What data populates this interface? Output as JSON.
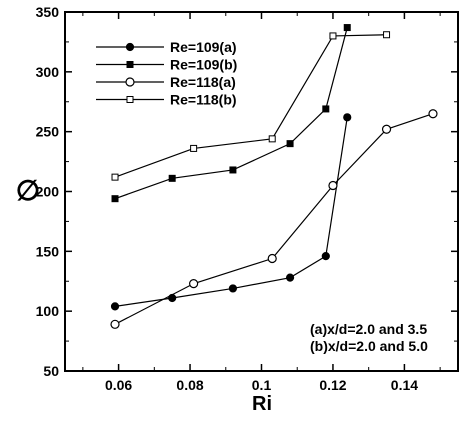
{
  "chart_data": {
    "type": "line",
    "xlabel": "Ri",
    "ylabel": "∅",
    "xlim": [
      0.045,
      0.155
    ],
    "ylim": [
      50,
      350
    ],
    "x_ticks": [
      "0.06",
      "0.08",
      "0.1",
      "0.12",
      "0.14"
    ],
    "y_ticks": [
      "50",
      "100",
      "150",
      "200",
      "250",
      "300",
      "350"
    ],
    "grid": false,
    "legend_position": "top-left",
    "series": [
      {
        "name": "Re=109(a)",
        "marker": "filled-circle",
        "x": [
          0.059,
          0.075,
          0.092,
          0.108,
          0.118,
          0.124
        ],
        "y": [
          104,
          111,
          119,
          128,
          146,
          262
        ]
      },
      {
        "name": "Re=109(b)",
        "marker": "filled-square",
        "x": [
          0.059,
          0.075,
          0.092,
          0.108,
          0.118,
          0.124
        ],
        "y": [
          194,
          211,
          218,
          240,
          269,
          337
        ]
      },
      {
        "name": "Re=118(a)",
        "marker": "open-circle",
        "x": [
          0.059,
          0.081,
          0.103,
          0.12,
          0.135,
          0.148
        ],
        "y": [
          89,
          123,
          144,
          205,
          252,
          265
        ]
      },
      {
        "name": "Re=118(b)",
        "marker": "open-square",
        "x": [
          0.059,
          0.081,
          0.103,
          0.12,
          0.135
        ],
        "y": [
          212,
          236,
          244,
          330,
          331
        ]
      }
    ],
    "annotations": [
      "(a)x/d=2.0 and 3.5",
      "(b)x/d=2.0 and 5.0"
    ]
  }
}
